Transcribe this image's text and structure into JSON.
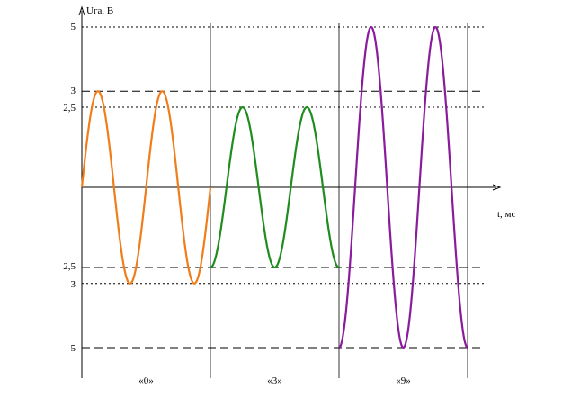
{
  "chart_data": {
    "type": "line",
    "title": "",
    "ylabel": "Uга, В",
    "xlabel": "t, мс",
    "ylim": [
      -5,
      5
    ],
    "y_tick_labels_upper": [
      {
        "value": 5,
        "label": "5",
        "style": "dotted"
      },
      {
        "value": 3,
        "label": "3",
        "style": "dashed"
      },
      {
        "value": 2.5,
        "label": "2,5",
        "style": "dotted"
      }
    ],
    "y_tick_labels_lower": [
      {
        "value": -2.5,
        "label": "2,5",
        "style": "dashed"
      },
      {
        "value": -3,
        "label": "3",
        "style": "dotted"
      },
      {
        "value": -5,
        "label": "5",
        "style": "dashed"
      }
    ],
    "segments": [
      {
        "label": "«0»",
        "color": "#f07d1a",
        "amplitude": 3,
        "offset": 0,
        "start_phase": "zero-rising",
        "periods": 2
      },
      {
        "label": "«3»",
        "color": "#1e8c1e",
        "amplitude": 2.5,
        "offset": 0,
        "start_phase": "minimum",
        "periods": 2
      },
      {
        "label": "«9»",
        "color": "#8b1a9e",
        "amplitude": 5,
        "offset": 0,
        "start_phase": "minimum",
        "periods": 2
      }
    ]
  }
}
